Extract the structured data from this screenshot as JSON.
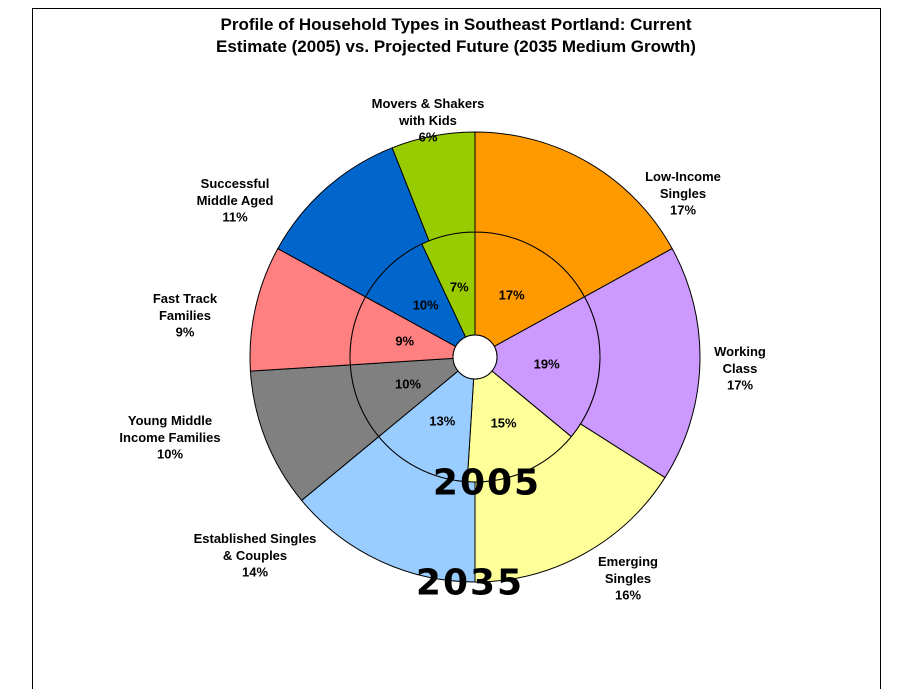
{
  "chart_data": {
    "type": "doughnut",
    "title": "Profile of Household Types in Southeast Portland: Current\nEstimate (2005) vs. Projected Future (2035 Medium Growth)",
    "categories": [
      "Low-Income\nSingles",
      "Working\nClass",
      "Emerging\nSingles",
      "Established Singles\n& Couples",
      "Young Middle\nIncome Families",
      "Fast Track\nFamilies",
      "Successful\nMiddle Aged",
      "Movers & Shakers\nwith Kids"
    ],
    "colors": [
      "#FF9900",
      "#CC99FF",
      "#FFFF99",
      "#99CCFF",
      "#808080",
      "#FF8080",
      "#0066CC",
      "#99CC00"
    ],
    "series": [
      {
        "name": "2005",
        "values": [
          17,
          19,
          15,
          13,
          10,
          9,
          10,
          7
        ],
        "value_labels": [
          "17%",
          "19%",
          "15%",
          "13%",
          "10%",
          "9%",
          "10%",
          "7%"
        ]
      },
      {
        "name": "2035",
        "values": [
          17,
          17,
          16,
          14,
          10,
          9,
          11,
          6
        ],
        "value_labels": [
          "17%",
          "17%",
          "16%",
          "14%",
          "10%",
          "9%",
          "11%",
          "6%"
        ]
      }
    ]
  }
}
